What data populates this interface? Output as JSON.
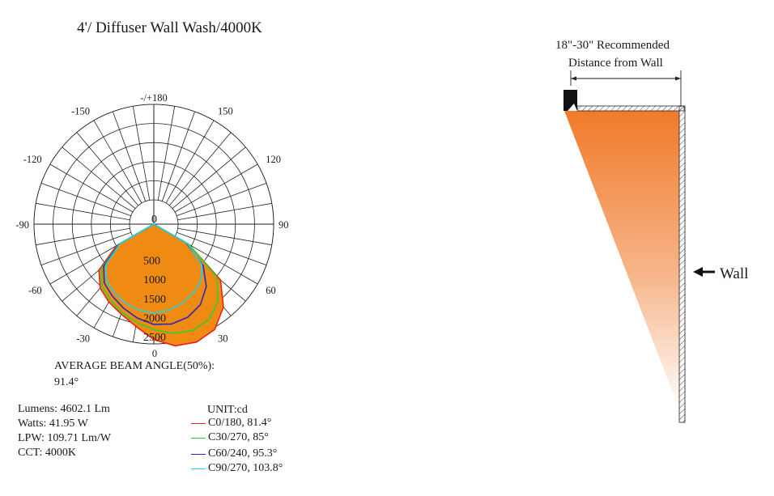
{
  "title": "4'/ Diffuser Wall Wash/4000K",
  "chart_data": {
    "type": "polar",
    "angle_labels": [
      {
        "angle": 180,
        "text": "-/+180"
      },
      {
        "angle": 150,
        "text": "150"
      },
      {
        "angle": -150,
        "text": "-150"
      },
      {
        "angle": 120,
        "text": "120"
      },
      {
        "angle": -120,
        "text": "-120"
      },
      {
        "angle": 90,
        "text": "90"
      },
      {
        "angle": -90,
        "text": "-90"
      },
      {
        "angle": 60,
        "text": "60"
      },
      {
        "angle": -60,
        "text": "-60"
      },
      {
        "angle": 30,
        "text": "30"
      },
      {
        "angle": -30,
        "text": "-30"
      },
      {
        "angle": 0,
        "text": "0"
      }
    ],
    "radial_labels": [
      "0",
      "500",
      "1000",
      "1500",
      "2000",
      "2500"
    ],
    "radial_values": [
      0,
      500,
      1000,
      1500,
      2000,
      2500
    ],
    "rmax": 2500,
    "unit": "UNIT:cd",
    "series": [
      {
        "name": "C0/180, 81.4°",
        "color": "#e8241c",
        "angles": [
          -60,
          -50,
          -40,
          -30,
          -20,
          -10,
          0,
          10,
          20,
          30,
          40,
          50,
          60
        ],
        "values": [
          500,
          1240,
          1550,
          1720,
          1870,
          2080,
          2390,
          2600,
          2650,
          2550,
          2200,
          1640,
          420
        ]
      },
      {
        "name": "C30/270, 85°",
        "color": "#2fd12c",
        "angles": [
          -60,
          -50,
          -40,
          -30,
          -20,
          -10,
          0,
          10,
          20,
          30,
          40,
          50,
          60
        ],
        "values": [
          420,
          1150,
          1480,
          1650,
          1820,
          1980,
          2130,
          2270,
          2330,
          2250,
          1980,
          1520,
          420
        ]
      },
      {
        "name": "C60/240, 95.3°",
        "color": "#2a2ab8",
        "angles": [
          -60,
          -50,
          -40,
          -30,
          -20,
          -10,
          0,
          10,
          20,
          30,
          40,
          50,
          60
        ],
        "values": [
          400,
          1080,
          1380,
          1540,
          1700,
          1860,
          1990,
          2020,
          1960,
          1800,
          1500,
          1050,
          340
        ]
      },
      {
        "name": "C90/270, 103.8°",
        "color": "#22d4e6",
        "angles": [
          -60,
          -50,
          -40,
          -30,
          -20,
          -10,
          0,
          10,
          20,
          30,
          40,
          50,
          60
        ],
        "values": [
          380,
          1000,
          1290,
          1440,
          1560,
          1650,
          1700,
          1650,
          1560,
          1440,
          1290,
          1000,
          380
        ]
      }
    ],
    "fill_color": "#ef8a12",
    "grid": true
  },
  "beam": {
    "label": "AVERAGE BEAM ANGLE(50%):",
    "value": "91.4°"
  },
  "specs": [
    "Lumens: 4602.1 Lm",
    "Watts: 41.95 W",
    "LPW: 109.71 Lm/W",
    "CCT: 4000K"
  ],
  "unit_label": "UNIT:cd",
  "diagram": {
    "recommend_line1": "18\"-30\" Recommended",
    "recommend_line2": "Distance from Wall",
    "wall_label": "Wall",
    "wash_color": "#f07a2a"
  }
}
